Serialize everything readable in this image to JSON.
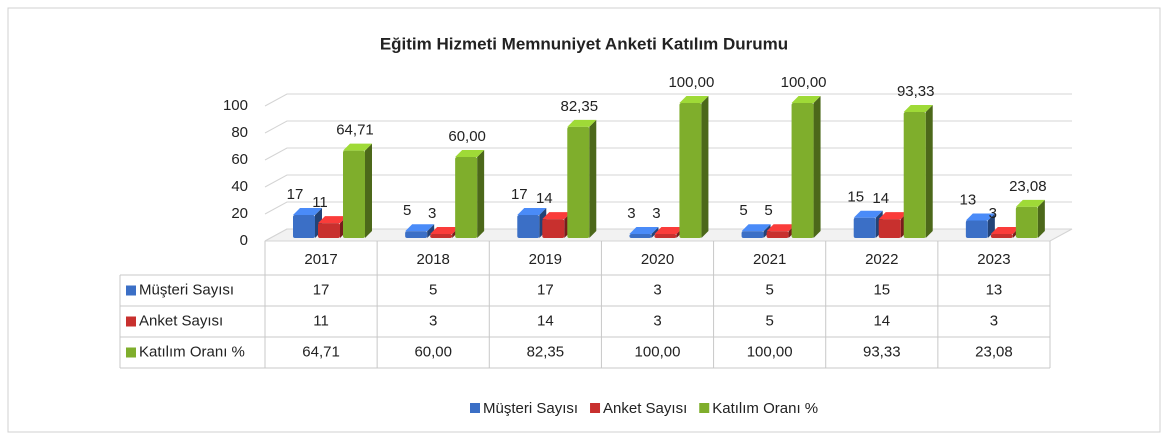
{
  "chart_data": {
    "type": "bar3d",
    "title": "Eğitim Hizmeti Memnuniyet Anketi Katılım Durumu",
    "categories": [
      "2017",
      "2018",
      "2019",
      "2020",
      "2021",
      "2022",
      "2023"
    ],
    "series": [
      {
        "name": "Müşteri Sayısı",
        "color": "#3b6fc6",
        "values": [
          17,
          5,
          17,
          3,
          5,
          15,
          13
        ]
      },
      {
        "name": "Anket Sayısı",
        "color": "#c8302e",
        "values": [
          11,
          3,
          14,
          3,
          5,
          14,
          3
        ]
      },
      {
        "name": "Katılım Oranı %",
        "color": "#7fae2c",
        "values": [
          64.71,
          60,
          82.35,
          100,
          100,
          93.33,
          23.08
        ],
        "value_labels": [
          "64,71",
          "60,00",
          "82,35",
          "100,00",
          "100,00",
          "93,33",
          "23,08"
        ]
      }
    ],
    "ylim": [
      0,
      100
    ],
    "yticks": [
      0,
      20,
      40,
      60,
      80,
      100
    ],
    "grid": true,
    "data_table": true,
    "legend": "bottom"
  }
}
